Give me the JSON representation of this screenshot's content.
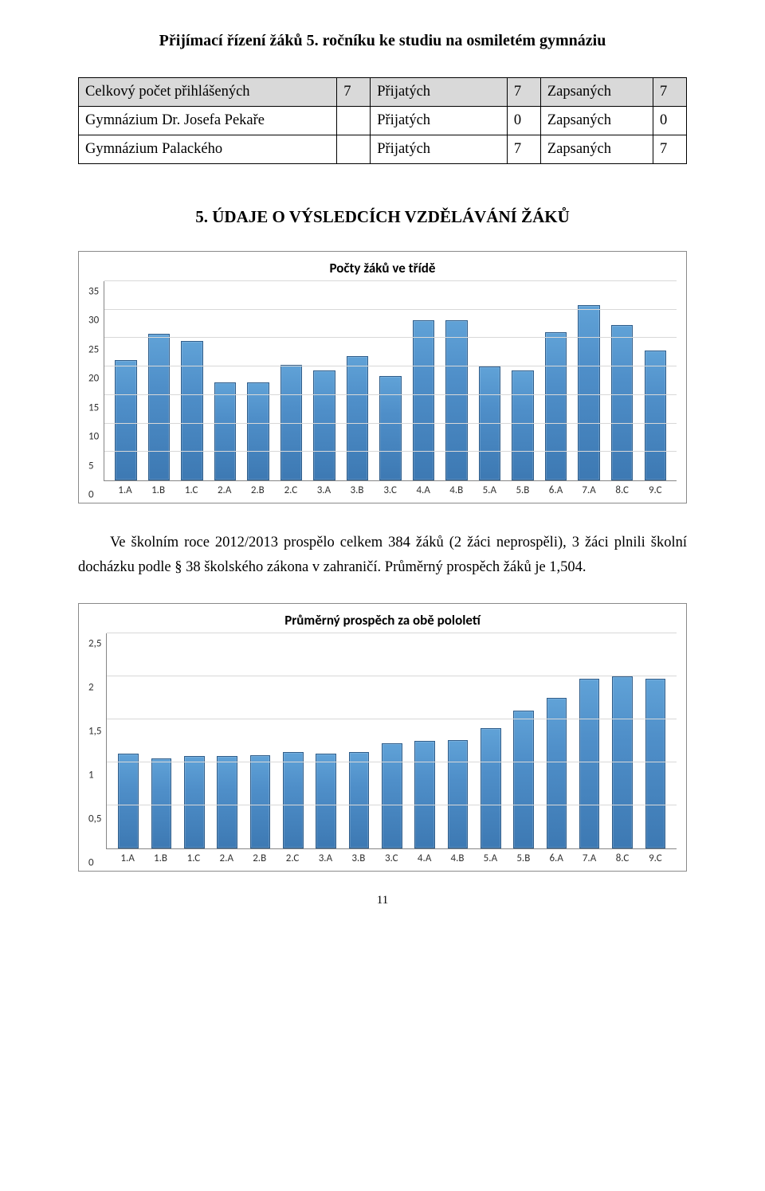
{
  "heading1": "Přijímací řízení žáků 5. ročníku ke studiu na osmiletém gymnáziu",
  "table": {
    "rows": [
      {
        "shaded": true,
        "label": "Celkový počet přihlášených",
        "c1": "7",
        "mid": "Přijatých",
        "c2": "7",
        "end": "Zapsaných",
        "c3": "7"
      },
      {
        "shaded": false,
        "label": "Gymnázium Dr. Josefa Pekaře",
        "c1": "",
        "mid": "Přijatých",
        "c2": "0",
        "end": "Zapsaných",
        "c3": "0"
      },
      {
        "shaded": false,
        "label": "Gymnázium Palackého",
        "c1": "",
        "mid": "Přijatých",
        "c2": "7",
        "end": "Zapsaných",
        "c3": "7"
      }
    ]
  },
  "section_heading": "5. ÚDAJE O VÝSLEDCÍCH VZDĚLÁVÁNÍ ŽÁKŮ",
  "chart1": {
    "title": "Počty žáků ve třídě",
    "type": "bar",
    "y_max": 35,
    "y_ticks": [
      0,
      5,
      10,
      15,
      20,
      25,
      30,
      35
    ],
    "grid_color": "#d8d8d8",
    "bar_fill": "#4f8fc9",
    "bar_border": "#2f5d8a",
    "categories": [
      "1.A",
      "1.B",
      "1.C",
      "2.A",
      "2.B",
      "2.C",
      "3.A",
      "3.B",
      "3.C",
      "4.A",
      "4.B",
      "5.A",
      "5.B",
      "6.A",
      "7.A",
      "8.C",
      "9.C"
    ],
    "values": [
      21.2,
      25.8,
      24.5,
      17.2,
      17.2,
      20.3,
      19.3,
      21.8,
      18.3,
      28.2,
      28.2,
      20.0,
      19.3,
      26.1,
      30.8,
      27.3,
      22.8
    ]
  },
  "paragraph": "Ve školním roce 2012/2013 prospělo celkem 384 žáků (2 žáci neprospěli), 3 žáci plnili školní docházku podle § 38 školského zákona v zahraničí. Průměrný prospěch žáků je 1,504.",
  "chart2": {
    "title": "Průměrný prospěch za obě pololetí",
    "type": "bar",
    "y_max": 2.5,
    "y_ticks": [
      "0",
      "0,5",
      "1",
      "1,5",
      "2",
      "2,5"
    ],
    "y_tick_values": [
      0,
      0.5,
      1,
      1.5,
      2,
      2.5
    ],
    "grid_color": "#d8d8d8",
    "bar_fill": "#4f8fc9",
    "bar_border": "#2f5d8a",
    "categories": [
      "1.A",
      "1.B",
      "1.C",
      "2.A",
      "2.B",
      "2.C",
      "3.A",
      "3.B",
      "3.C",
      "4.A",
      "4.B",
      "5.A",
      "5.B",
      "6.A",
      "7.A",
      "8.C",
      "9.C"
    ],
    "values": [
      1.1,
      1.05,
      1.07,
      1.07,
      1.08,
      1.12,
      1.1,
      1.12,
      1.22,
      1.25,
      1.26,
      1.4,
      1.6,
      1.75,
      1.97,
      2.0,
      1.97
    ]
  },
  "page_number": "11"
}
